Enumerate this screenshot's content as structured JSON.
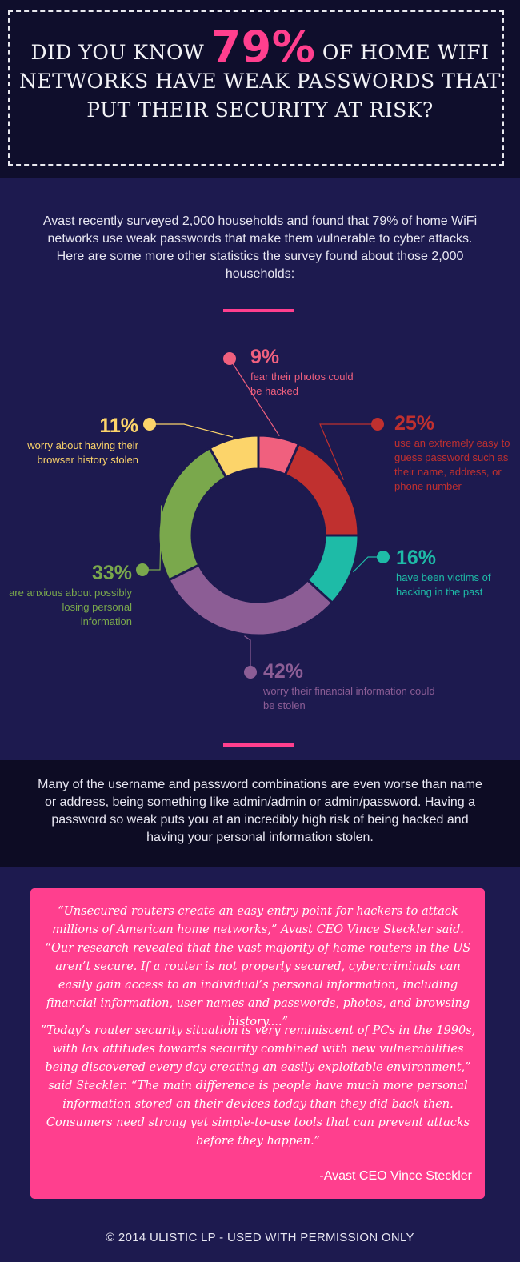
{
  "header": {
    "headline_before": "Did you know",
    "headline_pct": "79%",
    "headline_after": "of home WiFi networks have weak passwords that put their security at risk?"
  },
  "intro": {
    "text": "Avast recently surveyed 2,000 households and found that 79% of home WiFi networks use weak passwords that make them vulnerable to cyber attacks. Here are some more other statistics the survey found about those 2,000 households:"
  },
  "colors": {
    "accent": "#ff3f8e",
    "background": "#1d1a4f",
    "header_bg": "#0f0e2c"
  },
  "chart_data": {
    "type": "donut",
    "title": "",
    "unit": "%",
    "series": [
      {
        "label": "9%",
        "value": 9,
        "description": "fear their photos could be hacked",
        "color": "#f0607e"
      },
      {
        "label": "25%",
        "value": 25,
        "description": "use an extremely easy to guess password such as their name, address, or phone number",
        "color": "#c0302f"
      },
      {
        "label": "16%",
        "value": 16,
        "description": "have been victims of hacking in the past",
        "color": "#1ebba7"
      },
      {
        "label": "42%",
        "value": 42,
        "description": "worry their financial information could be stolen",
        "color": "#8c5d95"
      },
      {
        "label": "33%",
        "value": 33,
        "description": "are anxious about possibly losing personal information",
        "color": "#7aa84c"
      },
      {
        "label": "11%",
        "value": 11,
        "description": "worry about having their browser history stolen",
        "color": "#fcd46a"
      }
    ]
  },
  "middle": {
    "text": "Many of the username and password combinations are even worse than name or address, being something like admin/admin or admin/password. Having a password so weak puts you at an incredibly high risk of being hacked and having your personal information stolen."
  },
  "quote": {
    "paragraph1": "“Unsecured routers create an easy entry point for hackers to attack millions of American home networks,” Avast CEO Vince Steckler said. “Our research revealed that the vast majority of home routers in the US aren’t secure. If a router is not properly secured, cybercriminals can easily gain access to an individual’s personal information, including financial information, user names and passwords, photos, and browsing history....”",
    "paragraph2": "”Today’s router security situation is very reminiscent of PCs in the 1990s, with lax attitudes towards security combined with new vulnerabilities being discovered every day creating an easily exploitable environment,” said Steckler. “The main difference is people have much more personal information stored on their devices today than they did back then. Consumers need strong yet simple-to-use tools that can prevent attacks before they happen.”",
    "author": "-Avast CEO Vince Steckler"
  },
  "footer": {
    "text": "© 2014 ULISTIC LP - USED WITH PERMISSION ONLY"
  }
}
